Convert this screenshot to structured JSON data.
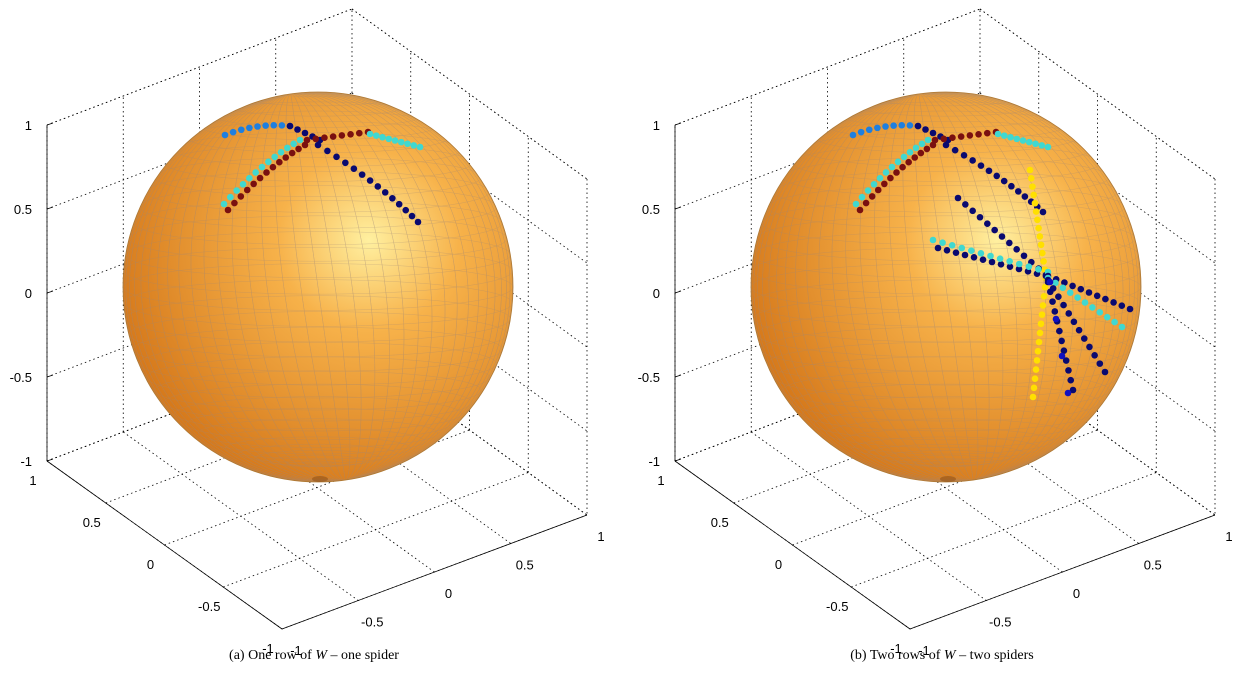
{
  "figure": {
    "panels": [
      {
        "id": "a",
        "caption_prefix": "(a) One row of",
        "caption_var": "W",
        "caption_suffix": "– one spider",
        "z_ticks": [
          "1",
          "0.5",
          "0",
          "-0.5",
          "-1"
        ],
        "left_ticks": [
          "1",
          "0.5",
          "0",
          "-0.5",
          "-1"
        ],
        "right_ticks": [
          "-1",
          "-0.5",
          "0",
          "0.5",
          "1"
        ]
      },
      {
        "id": "b",
        "caption_prefix": "(b) Two rows of",
        "caption_var": "W",
        "caption_suffix": "– two spiders",
        "z_ticks": [
          "1",
          "0.5",
          "0",
          "-0.5",
          "-1"
        ],
        "left_ticks": [
          "1",
          "0.5",
          "0",
          "-0.5",
          "-1"
        ],
        "right_ticks": [
          "-1",
          "-0.5",
          "0",
          "0.5",
          "1"
        ]
      }
    ]
  },
  "colors": {
    "sphere_light": "#fff0a0",
    "sphere_mid": "#f7b24a",
    "sphere_dark": "#d67a1c",
    "mesh": "#a08878",
    "grid": "#000000",
    "dot_lightblue": "#1e7fe0",
    "dot_navy": "#0a0a70",
    "dot_maroon": "#7a1010",
    "dot_cyan": "#40d8d0",
    "dot_blue": "#1010c0",
    "dot_yellow": "#ffe000"
  }
}
